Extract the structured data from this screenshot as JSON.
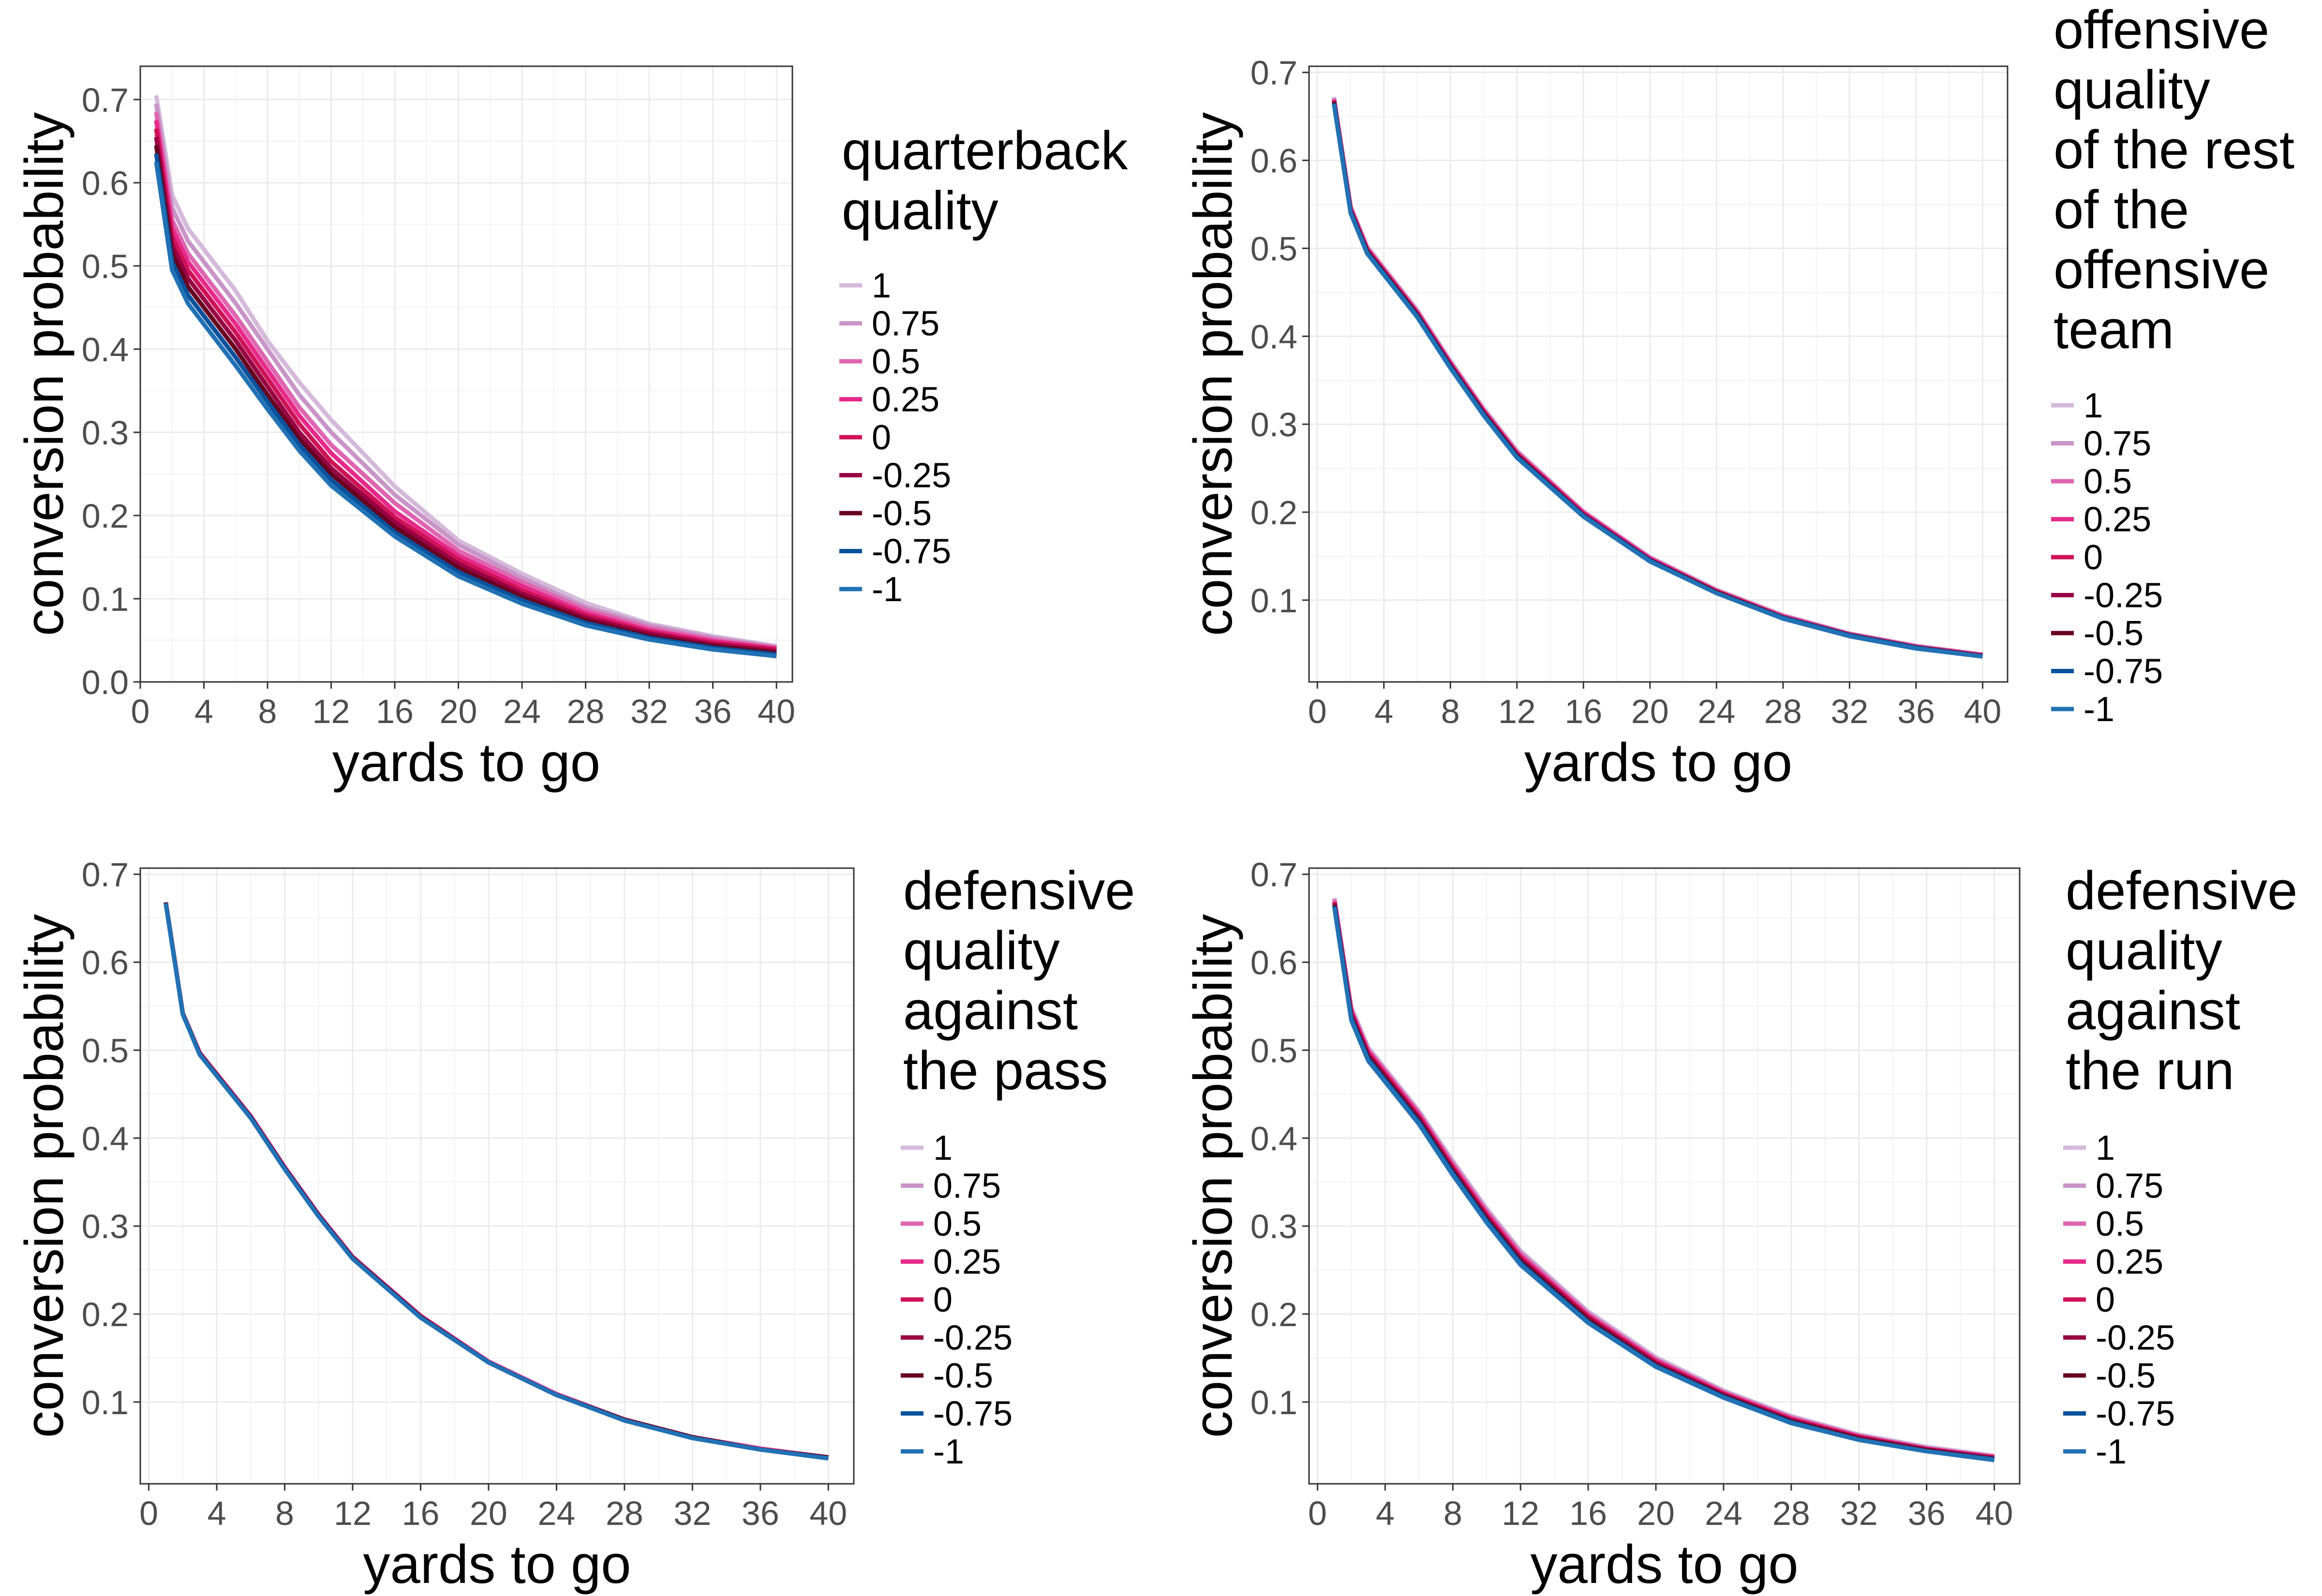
{
  "chart_data": [
    {
      "type": "line",
      "title": "",
      "xlabel": "yards to go",
      "ylabel": "conversion probability",
      "xlim": [
        0,
        41
      ],
      "ylim": [
        0,
        0.74
      ],
      "xticks": [
        "0",
        "4",
        "8",
        "12",
        "16",
        "20",
        "24",
        "28",
        "32",
        "36",
        "40"
      ],
      "yticks": [
        "0.0",
        "0.1",
        "0.2",
        "0.3",
        "0.4",
        "0.5",
        "0.6",
        "0.7"
      ],
      "grid": true,
      "legend": {
        "title": [
          "quarterback",
          "quality"
        ],
        "placement": "right"
      },
      "x": [
        1,
        2,
        3,
        4,
        6,
        8,
        10,
        12,
        16,
        20,
        24,
        28,
        32,
        36,
        40
      ],
      "series": [
        {
          "name": "1",
          "color": "#d4b9da",
          "values": [
            0.705,
            0.585,
            0.545,
            0.52,
            0.47,
            0.41,
            0.36,
            0.315,
            0.235,
            0.17,
            0.13,
            0.095,
            0.07,
            0.055,
            0.043
          ]
        },
        {
          "name": "0.75",
          "color": "#c994c7",
          "values": [
            0.695,
            0.57,
            0.53,
            0.505,
            0.455,
            0.4,
            0.345,
            0.3,
            0.225,
            0.165,
            0.125,
            0.09,
            0.068,
            0.053,
            0.042
          ]
        },
        {
          "name": "0.5",
          "color": "#df65b0",
          "values": [
            0.685,
            0.555,
            0.515,
            0.49,
            0.44,
            0.385,
            0.33,
            0.285,
            0.215,
            0.158,
            0.12,
            0.087,
            0.065,
            0.051,
            0.041
          ]
        },
        {
          "name": "0.25",
          "color": "#e7298a",
          "values": [
            0.675,
            0.545,
            0.505,
            0.48,
            0.43,
            0.375,
            0.32,
            0.275,
            0.205,
            0.152,
            0.115,
            0.083,
            0.062,
            0.049,
            0.04
          ]
        },
        {
          "name": "0",
          "color": "#ce1256",
          "values": [
            0.665,
            0.535,
            0.495,
            0.47,
            0.42,
            0.365,
            0.31,
            0.265,
            0.198,
            0.147,
            0.11,
            0.08,
            0.06,
            0.047,
            0.039
          ]
        },
        {
          "name": "-0.25",
          "color": "#980043",
          "values": [
            0.655,
            0.525,
            0.485,
            0.46,
            0.41,
            0.355,
            0.3,
            0.257,
            0.192,
            0.142,
            0.106,
            0.077,
            0.058,
            0.045,
            0.037
          ]
        },
        {
          "name": "-0.5",
          "color": "#67001f",
          "values": [
            0.645,
            0.515,
            0.475,
            0.45,
            0.4,
            0.345,
            0.292,
            0.25,
            0.186,
            0.137,
            0.102,
            0.074,
            0.055,
            0.043,
            0.035
          ]
        },
        {
          "name": "-0.75",
          "color": "#08519c",
          "values": [
            0.635,
            0.505,
            0.465,
            0.44,
            0.39,
            0.337,
            0.285,
            0.243,
            0.18,
            0.132,
            0.098,
            0.071,
            0.053,
            0.041,
            0.033
          ]
        },
        {
          "name": "-1",
          "color": "#2171b5",
          "values": [
            0.625,
            0.495,
            0.455,
            0.43,
            0.38,
            0.328,
            0.278,
            0.236,
            0.175,
            0.127,
            0.094,
            0.068,
            0.051,
            0.039,
            0.031
          ]
        }
      ]
    },
    {
      "type": "line",
      "title": "",
      "xlabel": "yards to go",
      "ylabel": "conversion probability",
      "xlim": [
        -0.5,
        41.5
      ],
      "ylim": [
        0.007,
        0.707
      ],
      "xticks": [
        "0",
        "4",
        "8",
        "12",
        "16",
        "20",
        "24",
        "28",
        "32",
        "36",
        "40"
      ],
      "yticks": [
        "0.1",
        "0.2",
        "0.3",
        "0.4",
        "0.5",
        "0.6",
        "0.7"
      ],
      "grid": true,
      "legend": {
        "title": [
          "offensive",
          "quality",
          "of the rest",
          "of the",
          "offensive",
          "team"
        ],
        "placement": "right"
      },
      "x": [
        1,
        2,
        3,
        4,
        6,
        8,
        10,
        12,
        16,
        20,
        24,
        28,
        32,
        36,
        40
      ],
      "series": [
        {
          "name": "1",
          "color": "#d4b9da",
          "values": [
            0.672,
            0.548,
            0.502,
            0.478,
            0.43,
            0.372,
            0.318,
            0.27,
            0.201,
            0.149,
            0.112,
            0.083,
            0.062,
            0.048,
            0.038
          ]
        },
        {
          "name": "0.75",
          "color": "#c994c7",
          "values": [
            0.671,
            0.547,
            0.501,
            0.477,
            0.429,
            0.371,
            0.317,
            0.269,
            0.2,
            0.148,
            0.111,
            0.082,
            0.062,
            0.048,
            0.038
          ]
        },
        {
          "name": "0.5",
          "color": "#df65b0",
          "values": [
            0.67,
            0.546,
            0.5,
            0.476,
            0.428,
            0.37,
            0.316,
            0.268,
            0.2,
            0.148,
            0.111,
            0.082,
            0.061,
            0.047,
            0.038
          ]
        },
        {
          "name": "0.25",
          "color": "#e7298a",
          "values": [
            0.669,
            0.545,
            0.499,
            0.475,
            0.427,
            0.369,
            0.315,
            0.267,
            0.199,
            0.147,
            0.11,
            0.081,
            0.061,
            0.047,
            0.037
          ]
        },
        {
          "name": "0",
          "color": "#ce1256",
          "values": [
            0.668,
            0.544,
            0.498,
            0.474,
            0.426,
            0.368,
            0.314,
            0.266,
            0.198,
            0.146,
            0.11,
            0.081,
            0.061,
            0.047,
            0.037
          ]
        },
        {
          "name": "-0.25",
          "color": "#980043",
          "values": [
            0.667,
            0.543,
            0.497,
            0.473,
            0.425,
            0.367,
            0.313,
            0.265,
            0.197,
            0.146,
            0.109,
            0.08,
            0.06,
            0.046,
            0.037
          ]
        },
        {
          "name": "-0.5",
          "color": "#67001f",
          "values": [
            0.666,
            0.542,
            0.496,
            0.472,
            0.424,
            0.366,
            0.312,
            0.264,
            0.196,
            0.145,
            0.109,
            0.08,
            0.06,
            0.046,
            0.036
          ]
        },
        {
          "name": "-0.75",
          "color": "#08519c",
          "values": [
            0.665,
            0.541,
            0.495,
            0.471,
            0.423,
            0.365,
            0.311,
            0.263,
            0.196,
            0.145,
            0.108,
            0.08,
            0.06,
            0.046,
            0.036
          ]
        },
        {
          "name": "-1",
          "color": "#2171b5",
          "values": [
            0.664,
            0.54,
            0.494,
            0.47,
            0.422,
            0.364,
            0.31,
            0.262,
            0.195,
            0.144,
            0.108,
            0.079,
            0.059,
            0.045,
            0.036
          ]
        }
      ]
    },
    {
      "type": "line",
      "title": "",
      "xlabel": "yards to go",
      "ylabel": "conversion probability",
      "xlim": [
        -0.5,
        41.5
      ],
      "ylim": [
        0.007,
        0.707
      ],
      "xticks": [
        "0",
        "4",
        "8",
        "12",
        "16",
        "20",
        "24",
        "28",
        "32",
        "36",
        "40"
      ],
      "yticks": [
        "0.1",
        "0.2",
        "0.3",
        "0.4",
        "0.5",
        "0.6",
        "0.7"
      ],
      "grid": true,
      "legend": {
        "title": [
          "defensive",
          "quality",
          "against",
          "the pass"
        ],
        "placement": "right"
      },
      "x": [
        1,
        2,
        3,
        4,
        6,
        8,
        10,
        12,
        16,
        20,
        24,
        28,
        32,
        36,
        40
      ],
      "series": [
        {
          "name": "1",
          "color": "#d4b9da",
          "values": [
            0.668,
            0.542,
            0.497,
            0.473,
            0.425,
            0.367,
            0.313,
            0.265,
            0.198,
            0.146,
            0.109,
            0.08,
            0.06,
            0.047,
            0.037
          ]
        },
        {
          "name": "0.75",
          "color": "#c994c7",
          "values": [
            0.668,
            0.542,
            0.497,
            0.473,
            0.425,
            0.367,
            0.313,
            0.265,
            0.198,
            0.146,
            0.109,
            0.08,
            0.06,
            0.047,
            0.037
          ]
        },
        {
          "name": "0.5",
          "color": "#df65b0",
          "values": [
            0.668,
            0.542,
            0.497,
            0.473,
            0.425,
            0.367,
            0.313,
            0.265,
            0.198,
            0.146,
            0.109,
            0.08,
            0.06,
            0.047,
            0.037
          ]
        },
        {
          "name": "0.25",
          "color": "#e7298a",
          "values": [
            0.668,
            0.542,
            0.497,
            0.473,
            0.425,
            0.367,
            0.313,
            0.265,
            0.198,
            0.146,
            0.109,
            0.08,
            0.06,
            0.047,
            0.037
          ]
        },
        {
          "name": "0",
          "color": "#ce1256",
          "values": [
            0.668,
            0.542,
            0.496,
            0.472,
            0.424,
            0.366,
            0.312,
            0.264,
            0.197,
            0.145,
            0.108,
            0.08,
            0.06,
            0.046,
            0.037
          ]
        },
        {
          "name": "-0.25",
          "color": "#980043",
          "values": [
            0.668,
            0.542,
            0.496,
            0.472,
            0.424,
            0.366,
            0.312,
            0.264,
            0.197,
            0.145,
            0.108,
            0.08,
            0.06,
            0.046,
            0.037
          ]
        },
        {
          "name": "-0.5",
          "color": "#67001f",
          "values": [
            0.668,
            0.542,
            0.496,
            0.472,
            0.424,
            0.366,
            0.312,
            0.264,
            0.197,
            0.145,
            0.108,
            0.08,
            0.06,
            0.046,
            0.037
          ]
        },
        {
          "name": "-0.75",
          "color": "#08519c",
          "values": [
            0.667,
            0.541,
            0.495,
            0.471,
            0.423,
            0.365,
            0.311,
            0.263,
            0.196,
            0.145,
            0.108,
            0.079,
            0.059,
            0.046,
            0.036
          ]
        },
        {
          "name": "-1",
          "color": "#2171b5",
          "values": [
            0.667,
            0.541,
            0.495,
            0.471,
            0.423,
            0.365,
            0.311,
            0.263,
            0.196,
            0.145,
            0.108,
            0.079,
            0.059,
            0.046,
            0.036
          ]
        }
      ]
    },
    {
      "type": "line",
      "title": "",
      "xlabel": "yards to go",
      "ylabel": "conversion probability",
      "xlim": [
        -0.5,
        41.5
      ],
      "ylim": [
        0.007,
        0.707
      ],
      "xticks": [
        "0",
        "4",
        "8",
        "12",
        "16",
        "20",
        "24",
        "28",
        "32",
        "36",
        "40"
      ],
      "yticks": [
        "0.1",
        "0.2",
        "0.3",
        "0.4",
        "0.5",
        "0.6",
        "0.7"
      ],
      "grid": true,
      "legend": {
        "title": [
          "defensive",
          "quality",
          "against",
          "the run"
        ],
        "placement": "right"
      },
      "x": [
        1,
        2,
        3,
        4,
        6,
        8,
        10,
        12,
        16,
        20,
        24,
        28,
        32,
        36,
        40
      ],
      "series": [
        {
          "name": "1",
          "color": "#d4b9da",
          "values": [
            0.673,
            0.549,
            0.503,
            0.479,
            0.431,
            0.374,
            0.32,
            0.272,
            0.203,
            0.151,
            0.113,
            0.084,
            0.063,
            0.049,
            0.039
          ]
        },
        {
          "name": "0.75",
          "color": "#c994c7",
          "values": [
            0.672,
            0.547,
            0.501,
            0.477,
            0.429,
            0.372,
            0.318,
            0.27,
            0.201,
            0.149,
            0.112,
            0.083,
            0.062,
            0.048,
            0.038
          ]
        },
        {
          "name": "0.5",
          "color": "#df65b0",
          "values": [
            0.671,
            0.545,
            0.5,
            0.476,
            0.428,
            0.37,
            0.316,
            0.268,
            0.2,
            0.148,
            0.111,
            0.082,
            0.061,
            0.047,
            0.038
          ]
        },
        {
          "name": "0.25",
          "color": "#e7298a",
          "values": [
            0.669,
            0.544,
            0.498,
            0.474,
            0.426,
            0.368,
            0.314,
            0.266,
            0.198,
            0.147,
            0.11,
            0.081,
            0.061,
            0.047,
            0.037
          ]
        },
        {
          "name": "0",
          "color": "#ce1256",
          "values": [
            0.668,
            0.542,
            0.496,
            0.472,
            0.424,
            0.366,
            0.312,
            0.264,
            0.197,
            0.145,
            0.109,
            0.08,
            0.06,
            0.046,
            0.037
          ]
        },
        {
          "name": "-0.25",
          "color": "#980043",
          "values": [
            0.667,
            0.54,
            0.494,
            0.47,
            0.422,
            0.364,
            0.31,
            0.262,
            0.195,
            0.144,
            0.108,
            0.079,
            0.059,
            0.046,
            0.036
          ]
        },
        {
          "name": "-0.5",
          "color": "#67001f",
          "values": [
            0.665,
            0.538,
            0.492,
            0.468,
            0.42,
            0.362,
            0.308,
            0.26,
            0.193,
            0.142,
            0.107,
            0.078,
            0.058,
            0.045,
            0.035
          ]
        },
        {
          "name": "-0.75",
          "color": "#08519c",
          "values": [
            0.664,
            0.536,
            0.49,
            0.466,
            0.418,
            0.36,
            0.306,
            0.258,
            0.191,
            0.141,
            0.106,
            0.077,
            0.057,
            0.044,
            0.035
          ]
        },
        {
          "name": "-1",
          "color": "#2171b5",
          "values": [
            0.662,
            0.534,
            0.488,
            0.464,
            0.416,
            0.358,
            0.304,
            0.256,
            0.19,
            0.14,
            0.105,
            0.076,
            0.057,
            0.044,
            0.034
          ]
        }
      ]
    }
  ]
}
